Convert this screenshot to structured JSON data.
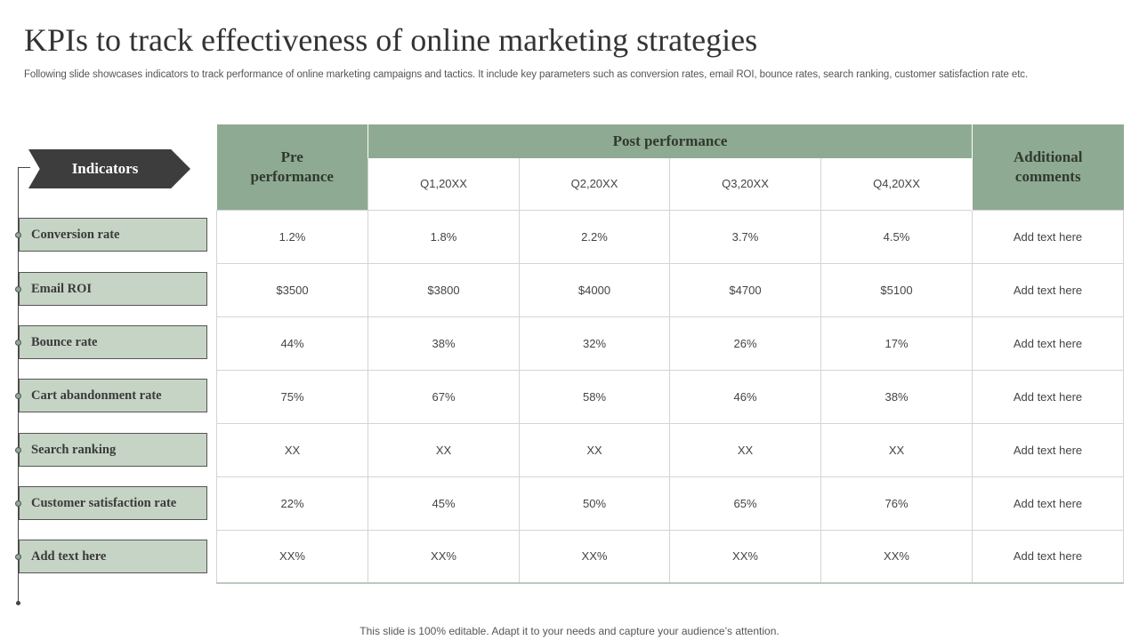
{
  "slide": {
    "title": "KPIs to track effectiveness of online marketing strategies",
    "subtitle": "Following slide showcases indicators to track performance of online marketing campaigns and tactics. It include key parameters such as conversion rates, email ROI, bounce rates, search ranking, customer satisfaction rate etc.",
    "footer": "This slide is 100% editable. Adapt it to your needs and capture your audience’s attention."
  },
  "indicators": {
    "header": "Indicators",
    "items": [
      "Conversion rate",
      "Email ROI",
      "Bounce rate",
      "Cart abandonment rate",
      "Search ranking",
      "Customer satisfaction rate",
      "Add text here"
    ]
  },
  "table": {
    "pre_header": "Pre performance",
    "post_header": "Post performance",
    "comments_header": "Additional comments",
    "quarters": [
      "Q1,20XX",
      "Q2,20XX",
      "Q3,20XX",
      "Q4,20XX"
    ],
    "rows": [
      {
        "pre": "1.2%",
        "q": [
          "1.8%",
          "2.2%",
          "3.7%",
          "4.5%"
        ],
        "comment": "Add text here"
      },
      {
        "pre": "$3500",
        "q": [
          "$3800",
          "$4000",
          "$4700",
          "$5100"
        ],
        "comment": "Add text here"
      },
      {
        "pre": "44%",
        "q": [
          "38%",
          "32%",
          "26%",
          "17%"
        ],
        "comment": "Add text here"
      },
      {
        "pre": "75%",
        "q": [
          "67%",
          "58%",
          "46%",
          "38%"
        ],
        "comment": "Add text here"
      },
      {
        "pre": "XX",
        "q": [
          "XX",
          "XX",
          "XX",
          "XX"
        ],
        "comment": "Add text here"
      },
      {
        "pre": "22%",
        "q": [
          "45%",
          "50%",
          "65%",
          "76%"
        ],
        "comment": "Add text here"
      },
      {
        "pre": "XX%",
        "q": [
          "XX%",
          "XX%",
          "XX%",
          "XX%"
        ],
        "comment": "Add text here"
      }
    ]
  },
  "colors": {
    "header_green": "#8faa92",
    "indicator_box": "#c6d4c5",
    "arrow_dark": "#3d3d3d"
  }
}
